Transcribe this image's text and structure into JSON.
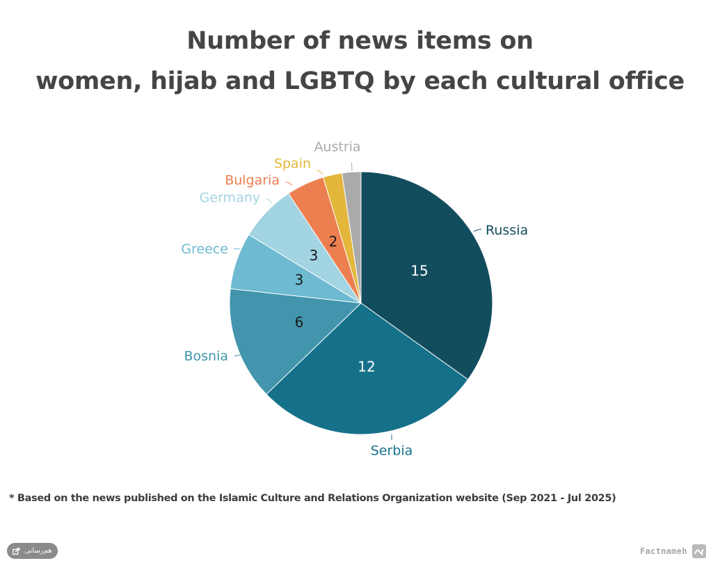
{
  "title": {
    "line1": "Number of news items on",
    "line2": "women, hijab and LGBTQ by each cultural office"
  },
  "footnote": "* Based on the news published on the Islamic Culture and Relations Organization website (Sep 2021 - Jul 2025)",
  "share_button": {
    "label": "هم‌رسانی",
    "icon": "share-icon"
  },
  "brand": {
    "name": "Factnameh",
    "logo_icon": "factnameh-logo-icon"
  },
  "chart_data": {
    "type": "pie",
    "title": "Number of news items on women, hijab and LGBTQ by each cultural office",
    "categories": [
      "Russia",
      "Serbia",
      "Bosnia",
      "Greece",
      "Germany",
      "Bulgaria",
      "Spain",
      "Austria"
    ],
    "values": [
      15,
      12,
      6,
      3,
      3,
      2,
      1,
      1
    ],
    "data_labels": [
      "15",
      "12",
      "6",
      "3",
      "3",
      "2",
      "",
      ""
    ],
    "colors": [
      "#124d5e",
      "#15718a",
      "#4295ad",
      "#6dbad1",
      "#a2d4e2",
      "#ec7f4f",
      "#e2b73b",
      "#aaaaaa"
    ],
    "label_colors": [
      "#124d5e",
      "#15718a",
      "#4295ad",
      "#6dbad1",
      "#a2d4e2",
      "#ec7f4f",
      "#e2b73b",
      "#aaaaaa"
    ],
    "data_label_colors": [
      "#ffffff",
      "#ffffff",
      "#1a1a1a",
      "#1a1a1a",
      "#1a1a1a",
      "#1a1a1a",
      "#1a1a1a",
      "#1a1a1a"
    ],
    "start": "12 o'clock",
    "direction": "clockwise",
    "legend": "none"
  }
}
